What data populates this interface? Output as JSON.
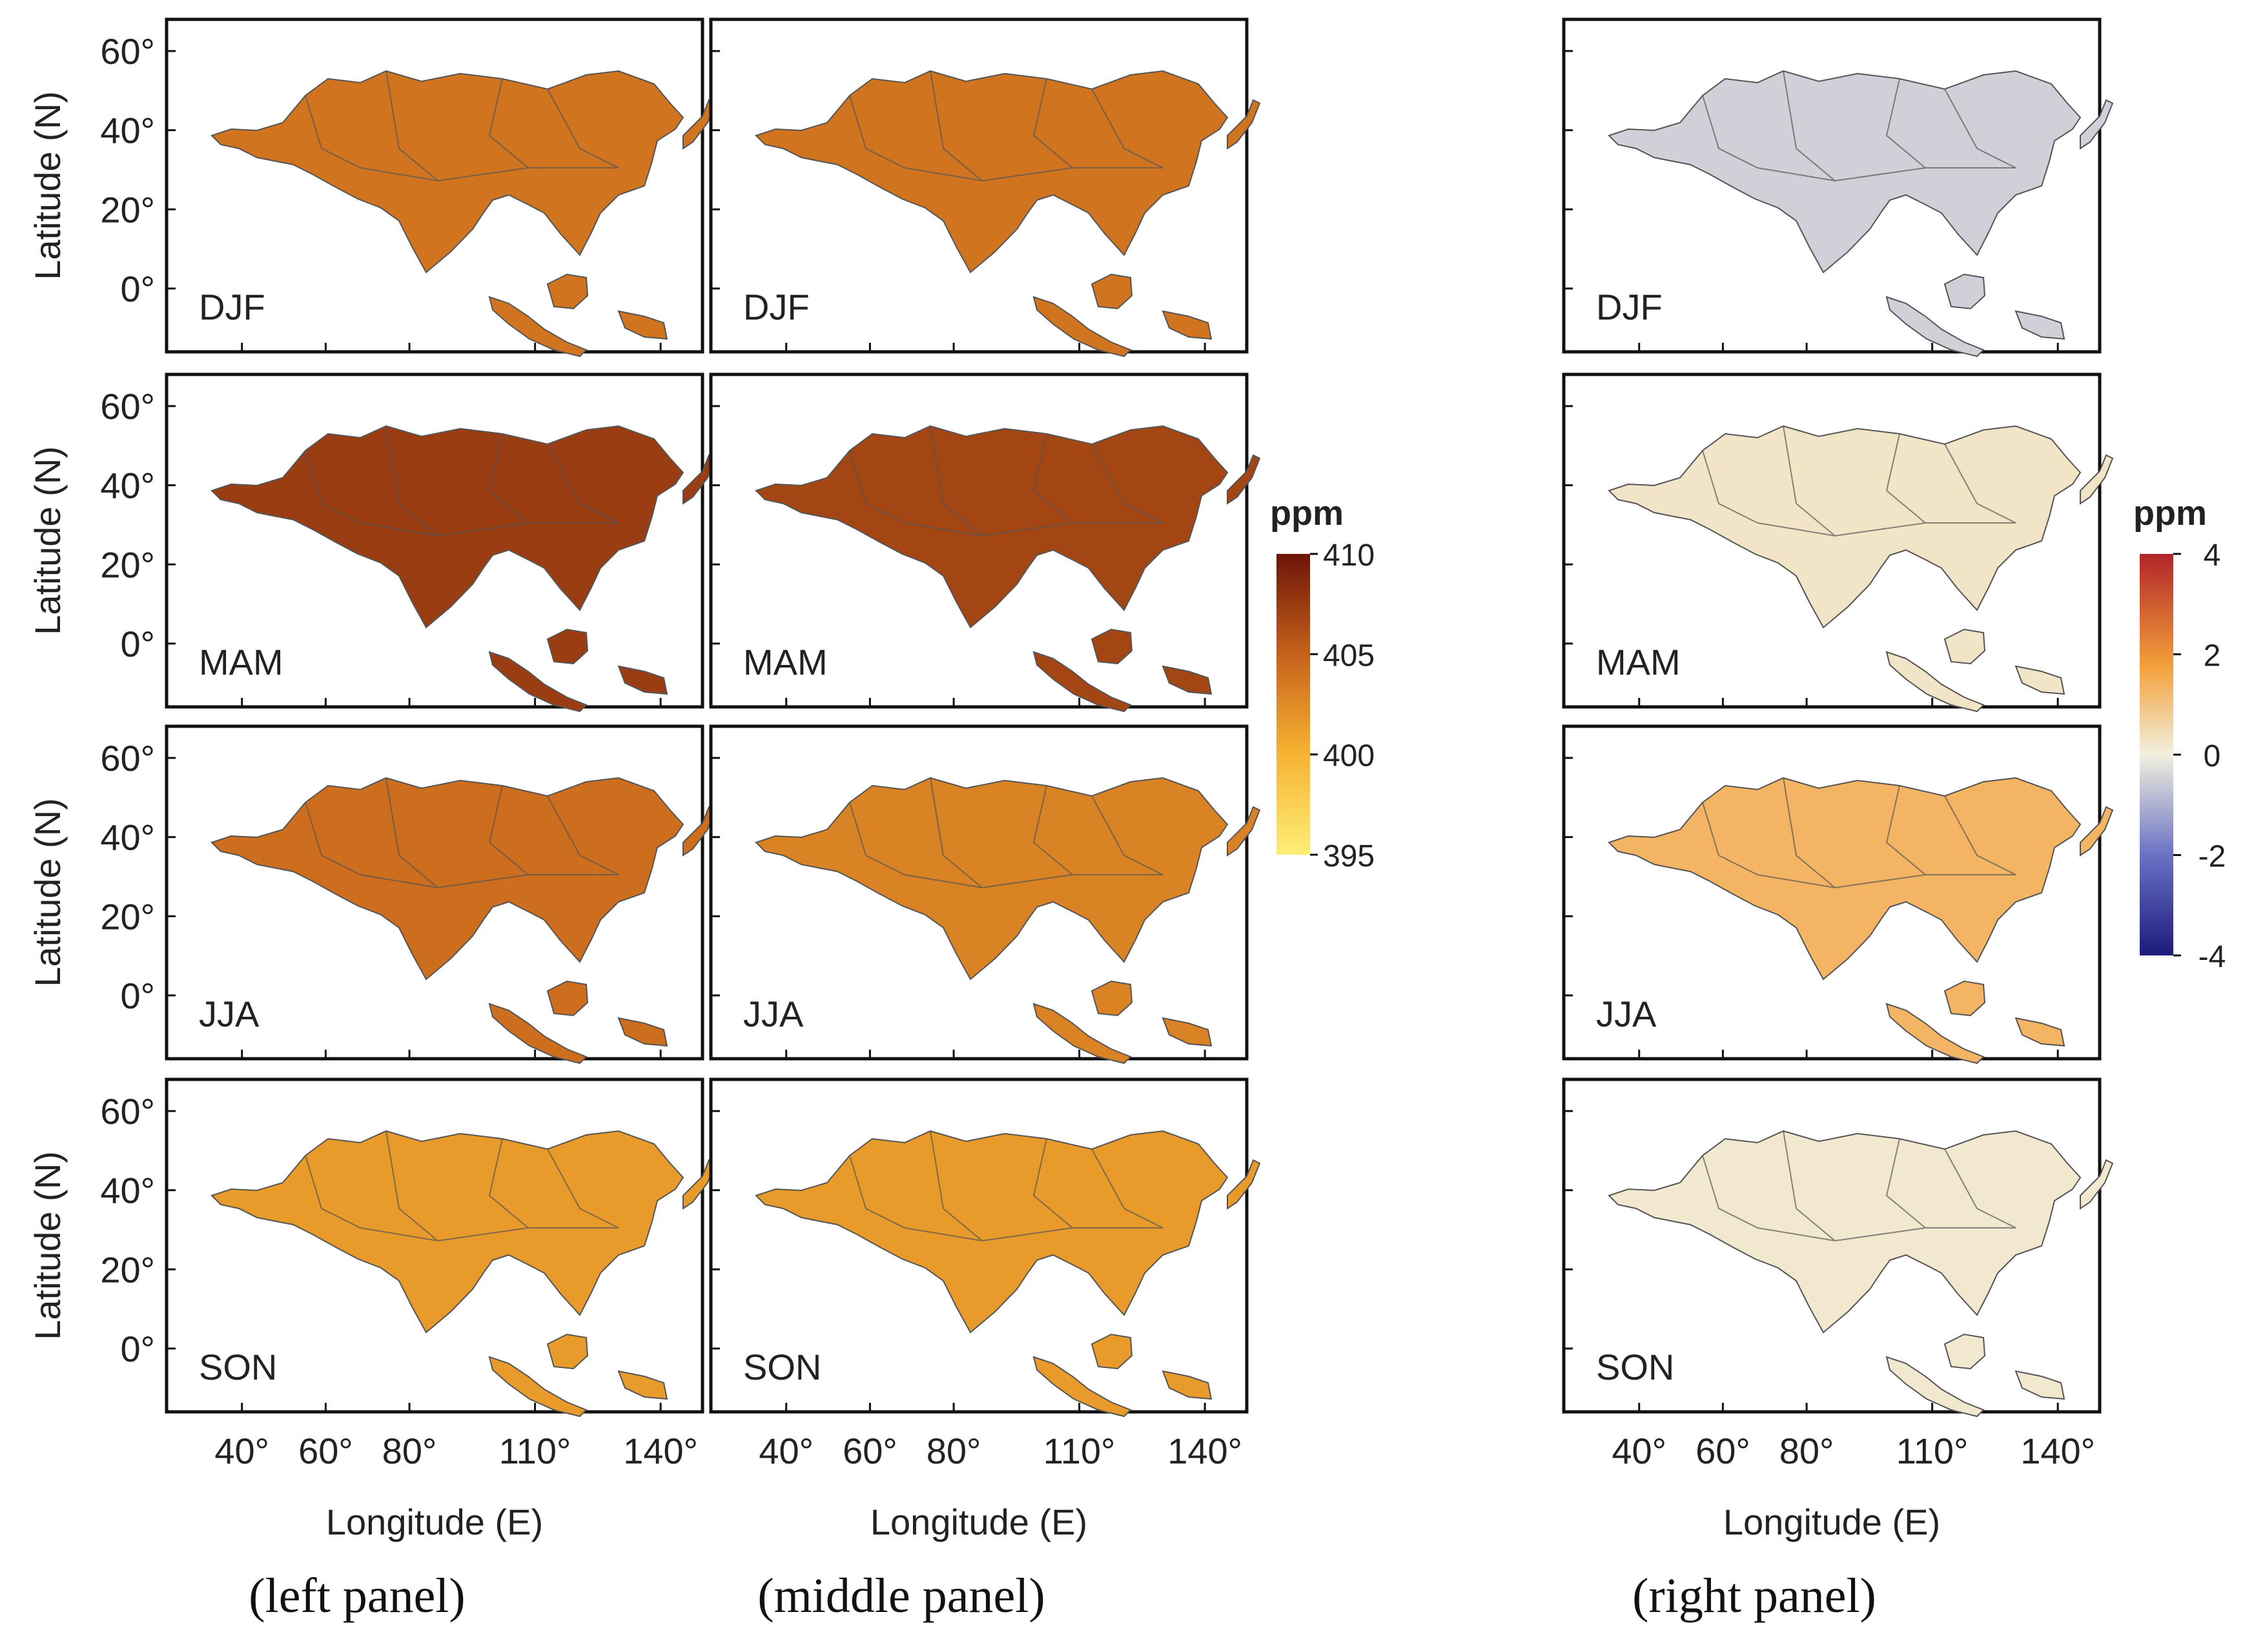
{
  "chart_data": {
    "type": "heatmap",
    "title": "",
    "seasons": [
      "DJF",
      "MAM",
      "JJA",
      "SON"
    ],
    "xlabel": "Longitude (E)",
    "ylabel": "Latitude (N)",
    "x_ticks": [
      "40°",
      "60°",
      "80°",
      "110°",
      "140°"
    ],
    "y_ticks": [
      "60°",
      "40°",
      "20°",
      "0°"
    ],
    "panels": [
      {
        "name": "left",
        "caption": "(left panel)",
        "colorbar": {
          "title": "ppm",
          "ticks": [
            "410",
            "405",
            "400",
            "395"
          ],
          "range": [
            395,
            410
          ]
        },
        "seasonal_mean_ppm": {
          "DJF": 404.0,
          "MAM": 407.5,
          "JJA": 404.5,
          "SON": 401.5
        }
      },
      {
        "name": "middle",
        "caption": "(middle panel)",
        "colorbar": {
          "title": "ppm",
          "ticks": [
            "410",
            "405",
            "400",
            "395"
          ],
          "range": [
            395,
            410
          ]
        },
        "seasonal_mean_ppm": {
          "DJF": 404.0,
          "MAM": 407.0,
          "JJA": 403.0,
          "SON": 401.5
        }
      },
      {
        "name": "right",
        "caption": "(right panel)",
        "colorbar": {
          "title": "ppm",
          "ticks": [
            "4",
            "2",
            "0",
            "-2",
            "-4"
          ],
          "range": [
            -4,
            4
          ]
        },
        "seasonal_mean_ppm": {
          "DJF": -0.5,
          "MAM": 0.3,
          "JJA": 1.5,
          "SON": 0.2
        }
      }
    ]
  }
}
